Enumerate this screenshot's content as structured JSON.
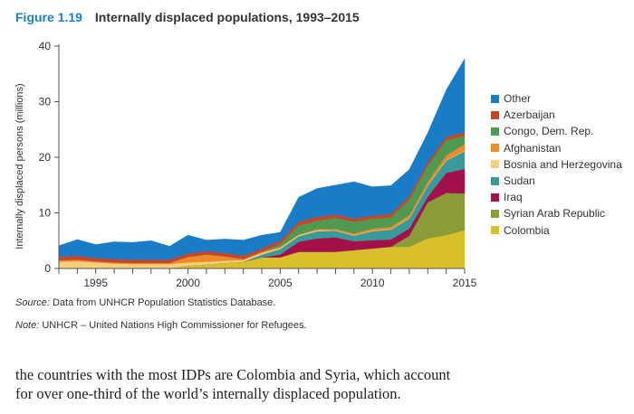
{
  "figure": {
    "number": "Figure 1.19",
    "title": "Internally displaced populations, 1993–2015"
  },
  "source_label": "Source:",
  "source_text": " Data from UNHCR Population Statistics Database.",
  "note_label": "Note:",
  "note_text": " UNHCR – United Nations High Commissioner for Refugees.",
  "body_lines": [
    "the countries with the most IDPs are Colombia and Syria, which account",
    "for over one-third of the world’s internally displaced population."
  ],
  "chart_data": {
    "type": "area",
    "stacked": true,
    "title": "Internally displaced populations, 1993–2015",
    "xlabel": "",
    "ylabel": "Internally displaced persons (millions)",
    "xlim": [
      1993,
      2015
    ],
    "ylim": [
      0,
      40
    ],
    "x_ticks": [
      1995,
      2000,
      2005,
      2010,
      2015
    ],
    "y_ticks": [
      0,
      10,
      20,
      30,
      40
    ],
    "legend_position": "right",
    "x": [
      1993,
      1994,
      1995,
      1996,
      1997,
      1998,
      1999,
      2000,
      2001,
      2002,
      2003,
      2004,
      2005,
      2006,
      2007,
      2008,
      2009,
      2010,
      2011,
      2012,
      2013,
      2014,
      2015
    ],
    "series": [
      {
        "name": "Colombia",
        "color": "#d9bf2a",
        "values": [
          0,
          0,
          0,
          0,
          0,
          0,
          0,
          0.5,
          0.7,
          1.0,
          1.2,
          2.0,
          2.0,
          3.0,
          3.0,
          3.0,
          3.3,
          3.6,
          3.9,
          3.9,
          5.4,
          6.0,
          6.9
        ]
      },
      {
        "name": "Syrian Arab Republic",
        "color": "#8a9c3a",
        "values": [
          0,
          0,
          0,
          0,
          0,
          0,
          0,
          0,
          0,
          0,
          0,
          0,
          0,
          0,
          0,
          0,
          0,
          0,
          0,
          2.0,
          6.5,
          7.6,
          6.6
        ]
      },
      {
        "name": "Iraq",
        "color": "#a3104a",
        "values": [
          0,
          0,
          0,
          0,
          0,
          0,
          0,
          0,
          0,
          0,
          0,
          0,
          0.5,
          1.8,
          2.4,
          2.6,
          1.6,
          1.5,
          1.3,
          1.3,
          1.0,
          3.6,
          4.4
        ]
      },
      {
        "name": "Sudan",
        "color": "#3a9a9a",
        "values": [
          0,
          0,
          0,
          0,
          0,
          0,
          0,
          0,
          0,
          0,
          0,
          0.5,
          1.0,
          1.0,
          1.3,
          1.2,
          1.0,
          1.6,
          1.8,
          1.8,
          2.0,
          2.2,
          3.2
        ]
      },
      {
        "name": "Bosnia and Herzegovina",
        "color": "#f5cf7a",
        "values": [
          1.2,
          1.3,
          1.1,
          0.9,
          0.8,
          0.8,
          0.8,
          0.6,
          0.5,
          0.4,
          0.3,
          0.3,
          0.2,
          0.2,
          0.2,
          0.1,
          0.1,
          0.1,
          0.1,
          0.1,
          0.1,
          0.1,
          0.1
        ]
      },
      {
        "name": "Afghanistan",
        "color": "#ef8a2a",
        "values": [
          0.3,
          0.3,
          0.2,
          0.2,
          0.2,
          0.2,
          0.2,
          1.0,
          1.3,
          0.8,
          0.2,
          0.2,
          0.2,
          0.1,
          0.2,
          0.2,
          0.3,
          0.4,
          0.4,
          0.5,
          0.6,
          0.8,
          1.2
        ]
      },
      {
        "name": "Congo, Dem. Rep.",
        "color": "#4f9a50",
        "values": [
          0,
          0,
          0,
          0,
          0,
          0,
          0,
          0,
          0,
          0,
          0,
          0,
          0.5,
          1.6,
          1.5,
          2.0,
          2.1,
          1.7,
          1.7,
          2.8,
          2.9,
          2.8,
          1.5
        ]
      },
      {
        "name": "Azerbaijan",
        "color": "#c8452a",
        "values": [
          0.6,
          0.7,
          0.6,
          0.6,
          0.6,
          0.6,
          0.6,
          0.6,
          0.6,
          0.6,
          0.6,
          0.6,
          0.6,
          0.7,
          0.7,
          0.6,
          0.6,
          0.6,
          0.6,
          0.6,
          0.6,
          0.6,
          0.6
        ]
      },
      {
        "name": "Other",
        "color": "#1a7cc6",
        "values": [
          2.0,
          2.9,
          2.4,
          3.1,
          3.1,
          3.4,
          2.4,
          3.3,
          2.0,
          2.5,
          2.8,
          2.4,
          1.5,
          4.4,
          5.1,
          5.3,
          6.6,
          5.2,
          5.1,
          4.8,
          5.3,
          8.4,
          13.2
        ]
      }
    ],
    "legend_order": [
      "Other",
      "Azerbaijan",
      "Congo, Dem. Rep.",
      "Afghanistan",
      "Bosnia and Herzegovina",
      "Sudan",
      "Iraq",
      "Syrian Arab Republic",
      "Colombia"
    ]
  }
}
